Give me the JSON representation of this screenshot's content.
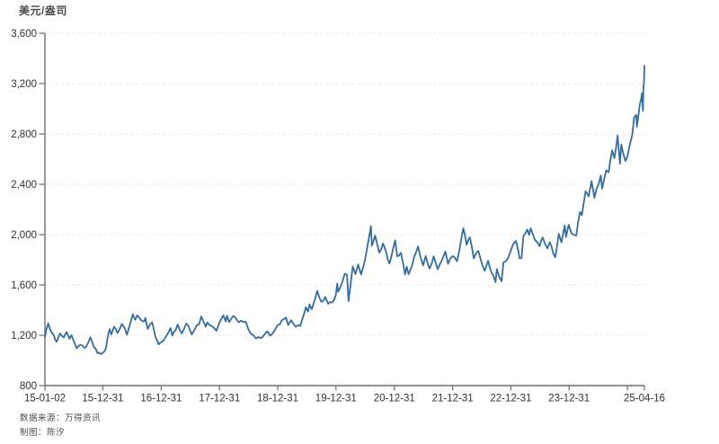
{
  "chart": {
    "unit_label": "美元/盎司"
  },
  "footer": {
    "source": "数据来源：万得资讯",
    "author": "制图：陈汐"
  },
  "colors": {
    "line": "#336d9e",
    "axis": "#6e6e6e",
    "grid": "#e8e8e8",
    "tick_text": "#303030"
  },
  "chart_data": {
    "type": "line",
    "title": "",
    "ylabel": "美元/盎司",
    "xlabel": "",
    "x_start": "2015-01-02",
    "x_end": "2025-04-16",
    "ylim": [
      800,
      3600
    ],
    "grid": "horizontal-dashed",
    "legend": "none",
    "render_jitter_usd": 13,
    "y_ticks": [
      {
        "value": 800,
        "label": "800"
      },
      {
        "value": 1200,
        "label": "1,200"
      },
      {
        "value": 1600,
        "label": "1,600"
      },
      {
        "value": 2000,
        "label": "2,000"
      },
      {
        "value": 2400,
        "label": "2,400"
      },
      {
        "value": 2800,
        "label": "2,800"
      },
      {
        "value": 3200,
        "label": "3,200"
      },
      {
        "value": 3600,
        "label": "3,600"
      }
    ],
    "x_ticks": [
      {
        "date": "2015-01-02",
        "label": "15-01-02"
      },
      {
        "date": "2015-12-31",
        "label": "15-12-31"
      },
      {
        "date": "2016-12-31",
        "label": "16-12-31"
      },
      {
        "date": "2017-12-31",
        "label": "17-12-31"
      },
      {
        "date": "2018-12-31",
        "label": "18-12-31"
      },
      {
        "date": "2019-12-31",
        "label": "19-12-31"
      },
      {
        "date": "2020-12-31",
        "label": "20-12-31"
      },
      {
        "date": "2021-12-31",
        "label": "21-12-31"
      },
      {
        "date": "2022-12-31",
        "label": "22-12-31"
      },
      {
        "date": "2023-12-31",
        "label": "23-12-31"
      },
      {
        "date": "2024-12-31",
        "label": ""
      },
      {
        "date": "2025-04-16",
        "label": "25-04-16"
      }
    ],
    "series": [
      {
        "points": [
          [
            "2015-01-02",
            1186
          ],
          [
            "2015-01-22",
            1295
          ],
          [
            "2015-02-06",
            1234
          ],
          [
            "2015-02-25",
            1204
          ],
          [
            "2015-03-17",
            1148
          ],
          [
            "2015-04-06",
            1214
          ],
          [
            "2015-04-30",
            1182
          ],
          [
            "2015-05-18",
            1226
          ],
          [
            "2015-06-05",
            1172
          ],
          [
            "2015-06-18",
            1200
          ],
          [
            "2015-07-20",
            1096
          ],
          [
            "2015-08-12",
            1124
          ],
          [
            "2015-08-26",
            1117
          ],
          [
            "2015-09-15",
            1103
          ],
          [
            "2015-10-14",
            1184
          ],
          [
            "2015-11-05",
            1106
          ],
          [
            "2015-11-27",
            1057
          ],
          [
            "2015-12-17",
            1050
          ],
          [
            "2015-12-31",
            1061
          ],
          [
            "2016-01-20",
            1101
          ],
          [
            "2016-02-11",
            1247
          ],
          [
            "2016-02-22",
            1208
          ],
          [
            "2016-03-10",
            1268
          ],
          [
            "2016-04-01",
            1217
          ],
          [
            "2016-04-29",
            1290
          ],
          [
            "2016-05-30",
            1205
          ],
          [
            "2016-06-24",
            1315
          ],
          [
            "2016-07-06",
            1366
          ],
          [
            "2016-07-21",
            1322
          ],
          [
            "2016-08-02",
            1358
          ],
          [
            "2016-08-24",
            1324
          ],
          [
            "2016-09-15",
            1310
          ],
          [
            "2016-09-22",
            1337
          ],
          [
            "2016-10-07",
            1251
          ],
          [
            "2016-11-04",
            1303
          ],
          [
            "2016-11-25",
            1184
          ],
          [
            "2016-12-15",
            1128
          ],
          [
            "2017-01-27",
            1184
          ],
          [
            "2017-02-27",
            1257
          ],
          [
            "2017-03-10",
            1198
          ],
          [
            "2017-04-13",
            1286
          ],
          [
            "2017-05-09",
            1214
          ],
          [
            "2017-06-06",
            1294
          ],
          [
            "2017-07-10",
            1207
          ],
          [
            "2017-08-09",
            1277
          ],
          [
            "2017-08-25",
            1288
          ],
          [
            "2017-09-08",
            1349
          ],
          [
            "2017-10-06",
            1268
          ],
          [
            "2017-10-16",
            1302
          ],
          [
            "2017-11-13",
            1274
          ],
          [
            "2017-12-12",
            1236
          ],
          [
            "2018-01-25",
            1358
          ],
          [
            "2018-02-08",
            1309
          ],
          [
            "2018-02-16",
            1355
          ],
          [
            "2018-03-01",
            1305
          ],
          [
            "2018-03-27",
            1353
          ],
          [
            "2018-05-01",
            1303
          ],
          [
            "2018-06-14",
            1308
          ],
          [
            "2018-07-02",
            1240
          ],
          [
            "2018-08-16",
            1174
          ],
          [
            "2018-09-28",
            1187
          ],
          [
            "2018-10-26",
            1233
          ],
          [
            "2018-11-13",
            1197
          ],
          [
            "2018-12-31",
            1281
          ],
          [
            "2019-02-20",
            1341
          ],
          [
            "2019-03-07",
            1281
          ],
          [
            "2019-03-25",
            1319
          ],
          [
            "2019-04-23",
            1267
          ],
          [
            "2019-05-21",
            1274
          ],
          [
            "2019-06-25",
            1423
          ],
          [
            "2019-07-09",
            1388
          ],
          [
            "2019-07-18",
            1446
          ],
          [
            "2019-08-01",
            1406
          ],
          [
            "2019-09-04",
            1552
          ],
          [
            "2019-10-01",
            1466
          ],
          [
            "2019-10-25",
            1505
          ],
          [
            "2019-11-12",
            1451
          ],
          [
            "2019-12-06",
            1460
          ],
          [
            "2019-12-31",
            1523
          ],
          [
            "2020-01-08",
            1611
          ],
          [
            "2020-01-14",
            1546
          ],
          [
            "2020-02-24",
            1689
          ],
          [
            "2020-03-09",
            1680
          ],
          [
            "2020-03-19",
            1471
          ],
          [
            "2020-04-14",
            1747
          ],
          [
            "2020-05-01",
            1686
          ],
          [
            "2020-05-18",
            1762
          ],
          [
            "2020-06-05",
            1683
          ],
          [
            "2020-06-30",
            1798
          ],
          [
            "2020-08-06",
            2067
          ],
          [
            "2020-08-12",
            1911
          ],
          [
            "2020-09-01",
            1992
          ],
          [
            "2020-09-28",
            1856
          ],
          [
            "2020-10-21",
            1929
          ],
          [
            "2020-11-09",
            1863
          ],
          [
            "2020-11-30",
            1771
          ],
          [
            "2021-01-05",
            1954
          ],
          [
            "2021-01-18",
            1828
          ],
          [
            "2021-02-10",
            1855
          ],
          [
            "2021-03-08",
            1683
          ],
          [
            "2021-03-18",
            1745
          ],
          [
            "2021-03-30",
            1686
          ],
          [
            "2021-05-28",
            1906
          ],
          [
            "2021-06-29",
            1755
          ],
          [
            "2021-07-15",
            1829
          ],
          [
            "2021-08-09",
            1730
          ],
          [
            "2021-09-03",
            1827
          ],
          [
            "2021-09-29",
            1726
          ],
          [
            "2021-11-16",
            1865
          ],
          [
            "2021-12-02",
            1768
          ],
          [
            "2021-12-31",
            1829
          ],
          [
            "2022-01-28",
            1788
          ],
          [
            "2022-03-08",
            2051
          ],
          [
            "2022-03-29",
            1919
          ],
          [
            "2022-04-18",
            1978
          ],
          [
            "2022-05-13",
            1811
          ],
          [
            "2022-06-10",
            1871
          ],
          [
            "2022-07-20",
            1712
          ],
          [
            "2022-08-10",
            1792
          ],
          [
            "2022-09-01",
            1697
          ],
          [
            "2022-09-26",
            1622
          ],
          [
            "2022-10-04",
            1726
          ],
          [
            "2022-11-03",
            1629
          ],
          [
            "2022-11-15",
            1780
          ],
          [
            "2022-12-13",
            1811
          ],
          [
            "2023-01-13",
            1920
          ],
          [
            "2023-02-01",
            1950
          ],
          [
            "2023-02-24",
            1811
          ],
          [
            "2023-03-08",
            1813
          ],
          [
            "2023-03-20",
            1989
          ],
          [
            "2023-04-13",
            2040
          ],
          [
            "2023-04-25",
            1997
          ],
          [
            "2023-05-04",
            2050
          ],
          [
            "2023-05-30",
            1959
          ],
          [
            "2023-06-29",
            1908
          ],
          [
            "2023-07-19",
            1977
          ],
          [
            "2023-08-17",
            1889
          ],
          [
            "2023-09-01",
            1940
          ],
          [
            "2023-10-05",
            1820
          ],
          [
            "2023-10-27",
            2006
          ],
          [
            "2023-11-13",
            1938
          ],
          [
            "2023-12-04",
            2072
          ],
          [
            "2023-12-12",
            1981
          ],
          [
            "2023-12-28",
            2077
          ],
          [
            "2024-01-17",
            2006
          ],
          [
            "2024-02-14",
            1992
          ],
          [
            "2024-03-08",
            2179
          ],
          [
            "2024-03-20",
            2155
          ],
          [
            "2024-04-12",
            2344
          ],
          [
            "2024-04-22",
            2327
          ],
          [
            "2024-05-02",
            2303
          ],
          [
            "2024-05-20",
            2425
          ],
          [
            "2024-06-07",
            2293
          ],
          [
            "2024-07-17",
            2469
          ],
          [
            "2024-07-25",
            2364
          ],
          [
            "2024-08-20",
            2511
          ],
          [
            "2024-09-04",
            2494
          ],
          [
            "2024-09-26",
            2669
          ],
          [
            "2024-10-10",
            2608
          ],
          [
            "2024-10-30",
            2787
          ],
          [
            "2024-11-14",
            2563
          ],
          [
            "2024-11-22",
            2716
          ],
          [
            "2024-12-18",
            2585
          ],
          [
            "2024-12-31",
            2624
          ],
          [
            "2025-01-30",
            2794
          ],
          [
            "2025-02-11",
            2932
          ],
          [
            "2025-02-24",
            2951
          ],
          [
            "2025-02-28",
            2857
          ],
          [
            "2025-03-18",
            3035
          ],
          [
            "2025-03-28",
            3085
          ],
          [
            "2025-04-01",
            3123
          ],
          [
            "2025-04-07",
            2982
          ],
          [
            "2025-04-10",
            3176
          ],
          [
            "2025-04-14",
            3210
          ],
          [
            "2025-04-16",
            3343
          ]
        ]
      }
    ]
  }
}
